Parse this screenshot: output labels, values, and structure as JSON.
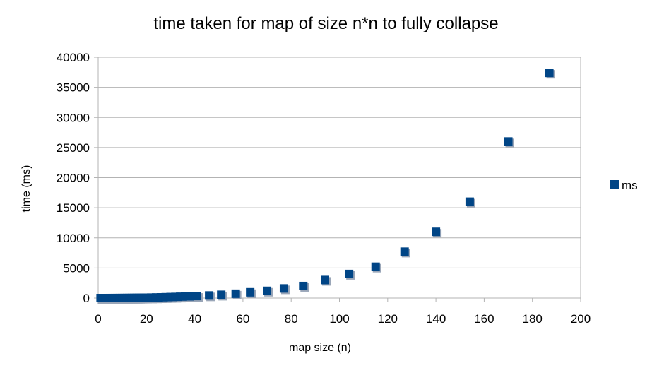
{
  "chart_data": {
    "type": "scatter",
    "title": "time taken for map of size n*n to fully collapse",
    "xlabel": "map size (n)",
    "ylabel": "time (ms)",
    "xlim": [
      0,
      200
    ],
    "ylim": [
      0,
      40000
    ],
    "xticks": [
      0,
      20,
      40,
      60,
      80,
      100,
      120,
      140,
      160,
      180,
      200
    ],
    "yticks": [
      0,
      5000,
      10000,
      15000,
      20000,
      25000,
      30000,
      35000,
      40000
    ],
    "grid": "horizontal",
    "legend_position": "right",
    "marker_color": "#004586",
    "series": [
      {
        "name": "ms",
        "points": [
          [
            1,
            0
          ],
          [
            2,
            0
          ],
          [
            3,
            0
          ],
          [
            4,
            1
          ],
          [
            5,
            2
          ],
          [
            6,
            3
          ],
          [
            7,
            4
          ],
          [
            8,
            6
          ],
          [
            9,
            8
          ],
          [
            10,
            10
          ],
          [
            11,
            12
          ],
          [
            12,
            15
          ],
          [
            13,
            18
          ],
          [
            14,
            22
          ],
          [
            15,
            27
          ],
          [
            16,
            32
          ],
          [
            17,
            38
          ],
          [
            18,
            45
          ],
          [
            19,
            52
          ],
          [
            20,
            60
          ],
          [
            22,
            75
          ],
          [
            24,
            95
          ],
          [
            26,
            115
          ],
          [
            28,
            140
          ],
          [
            30,
            165
          ],
          [
            32,
            190
          ],
          [
            34,
            220
          ],
          [
            36,
            255
          ],
          [
            38,
            290
          ],
          [
            41,
            340
          ],
          [
            46,
            430
          ],
          [
            51,
            540
          ],
          [
            57,
            720
          ],
          [
            63,
            960
          ],
          [
            70,
            1200
          ],
          [
            77,
            1600
          ],
          [
            85,
            2000
          ],
          [
            94,
            3000
          ],
          [
            104,
            4000
          ],
          [
            115,
            5200
          ],
          [
            127,
            7700
          ],
          [
            140,
            11000
          ],
          [
            154,
            16000
          ],
          [
            170,
            26000
          ],
          [
            187,
            37400
          ]
        ]
      }
    ]
  }
}
